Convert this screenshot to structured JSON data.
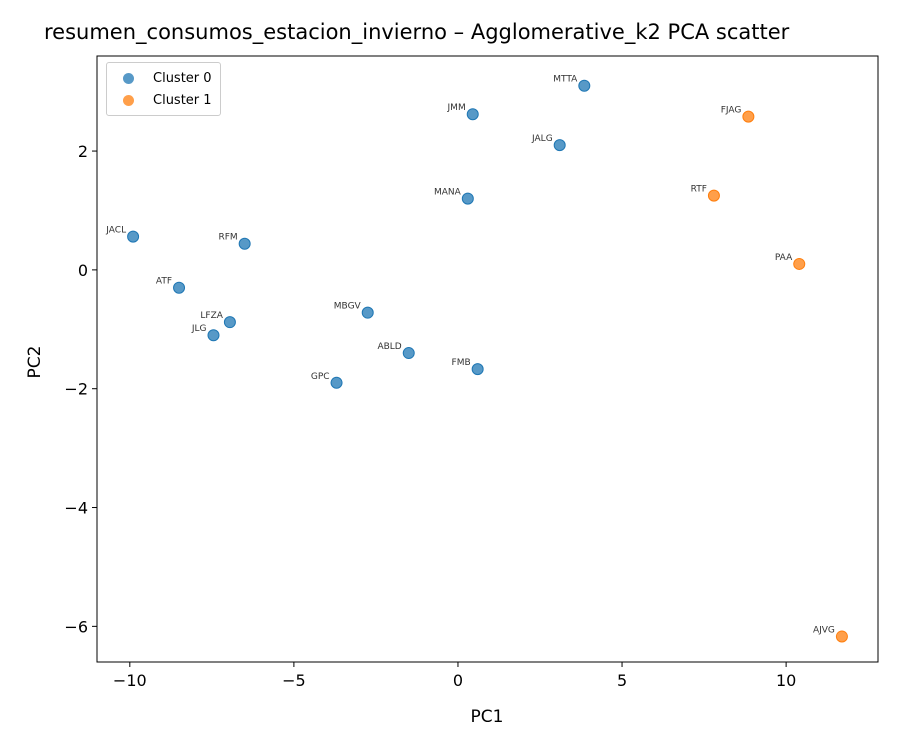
{
  "colors": {
    "cluster0": "#1f77b4",
    "cluster1": "#ff7f0e"
  },
  "chart_data": {
    "type": "scatter",
    "title": "resumen_consumos_estacion_invierno – Agglomerative_k2 PCA scatter",
    "xlabel": "PC1",
    "ylabel": "PC2",
    "xlim": [
      -11.0,
      12.8
    ],
    "ylim": [
      -6.6,
      3.6
    ],
    "xticks": [
      -10,
      -5,
      0,
      5,
      10
    ],
    "xtick_labels": [
      "−10",
      "−5",
      "0",
      "5",
      "10"
    ],
    "yticks": [
      -6,
      -4,
      -2,
      0,
      2
    ],
    "ytick_labels": [
      "−6",
      "−4",
      "−2",
      "0",
      "2"
    ],
    "grid": false,
    "legend_position": "upper-left",
    "series": [
      {
        "name": "Cluster 0",
        "color": "#1f77b4",
        "points": [
          {
            "label": "MTTA",
            "x": 3.85,
            "y": 3.1
          },
          {
            "label": "JMM",
            "x": 0.45,
            "y": 2.62
          },
          {
            "label": "JALG",
            "x": 3.1,
            "y": 2.1
          },
          {
            "label": "MANA",
            "x": 0.3,
            "y": 1.2
          },
          {
            "label": "JACL",
            "x": -9.9,
            "y": 0.56
          },
          {
            "label": "RFM",
            "x": -6.5,
            "y": 0.44
          },
          {
            "label": "ATF",
            "x": -8.5,
            "y": -0.3
          },
          {
            "label": "MBGV",
            "x": -2.75,
            "y": -0.72
          },
          {
            "label": "LFZA",
            "x": -6.95,
            "y": -0.88
          },
          {
            "label": "JLG",
            "x": -7.45,
            "y": -1.1
          },
          {
            "label": "ABLD",
            "x": -1.5,
            "y": -1.4
          },
          {
            "label": "FMB",
            "x": 0.6,
            "y": -1.67
          },
          {
            "label": "GPC",
            "x": -3.7,
            "y": -1.9
          }
        ]
      },
      {
        "name": "Cluster 1",
        "color": "#ff7f0e",
        "points": [
          {
            "label": "FJAG",
            "x": 8.85,
            "y": 2.58
          },
          {
            "label": "RTF",
            "x": 7.8,
            "y": 1.25
          },
          {
            "label": "PAA",
            "x": 10.4,
            "y": 0.1
          },
          {
            "label": "AJVG",
            "x": 11.7,
            "y": -6.17
          }
        ]
      }
    ]
  }
}
